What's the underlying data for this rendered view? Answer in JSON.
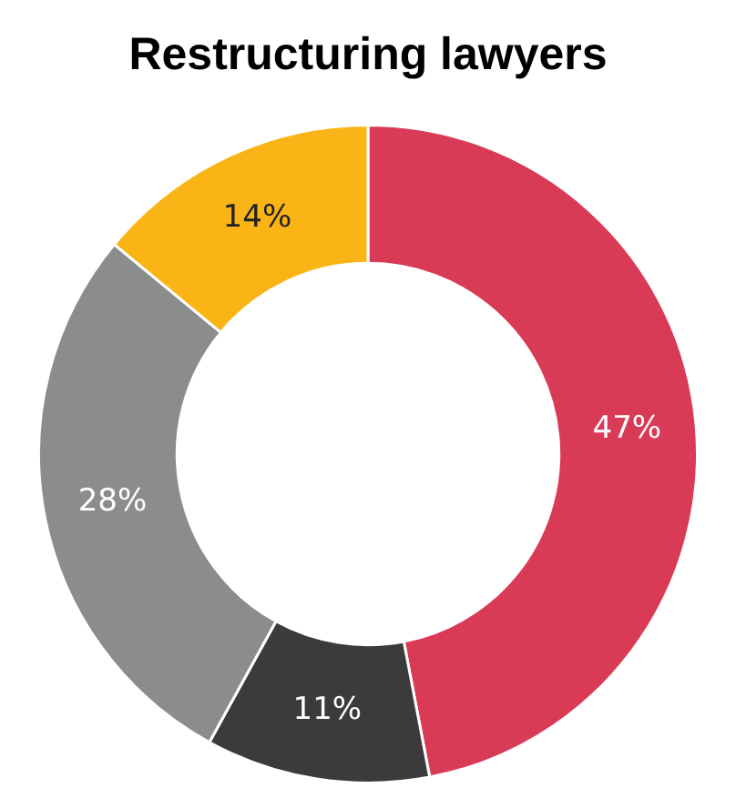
{
  "chart_data": {
    "type": "donut",
    "title": "Restructuring lawyers",
    "categories": [
      null,
      null,
      null,
      null
    ],
    "values": [
      47,
      11,
      28,
      14
    ],
    "colors": [
      "#d93a55",
      "#3b3b3b",
      "#8b8d8d",
      "#fbb415"
    ],
    "value_labels": [
      "47%",
      "11%",
      "28%",
      "14%"
    ],
    "legend": false
  }
}
